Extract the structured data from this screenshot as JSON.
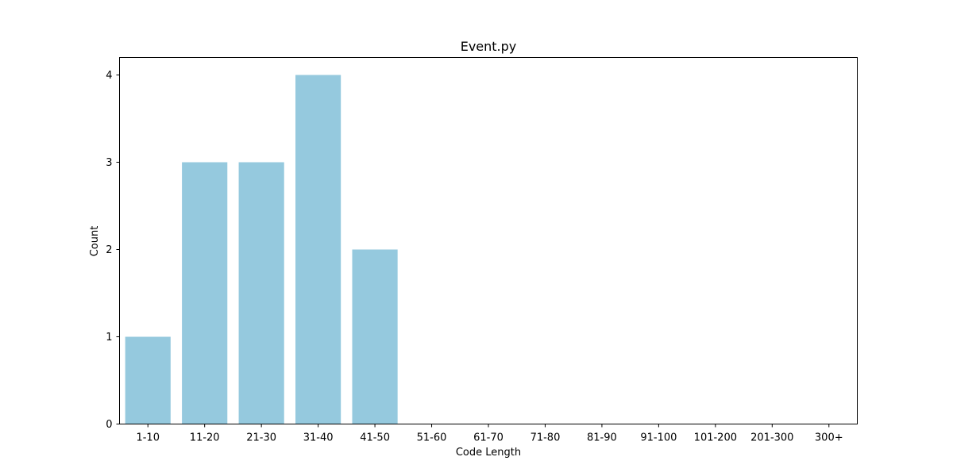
{
  "chart_data": {
    "type": "bar",
    "title": "Event.py",
    "xlabel": "Code Length",
    "ylabel": "Count",
    "categories": [
      "1-10",
      "11-20",
      "21-30",
      "31-40",
      "41-50",
      "51-60",
      "61-70",
      "71-80",
      "81-90",
      "91-100",
      "101-200",
      "201-300",
      "300+"
    ],
    "values": [
      1,
      3,
      3,
      4,
      2,
      0,
      0,
      0,
      0,
      0,
      0,
      0,
      0
    ],
    "ylim": [
      0,
      4.2
    ],
    "yticks": [
      "0",
      "1",
      "2",
      "3",
      "4"
    ],
    "bar_color": "#95c9de",
    "grid": false,
    "legend": "none"
  }
}
